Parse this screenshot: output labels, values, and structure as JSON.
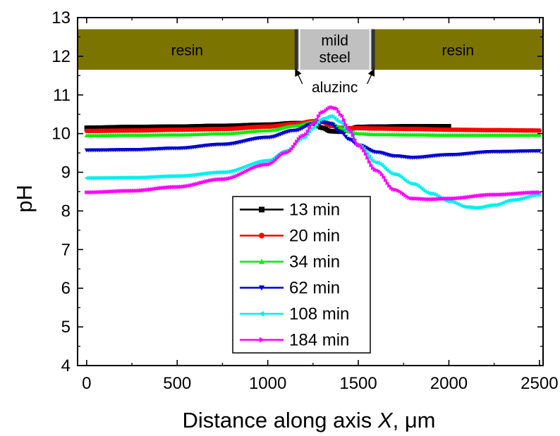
{
  "chart_data": {
    "type": "line",
    "title": "",
    "xlabel_main": "Distance along axis ",
    "xlabel_var": "X",
    "xlabel_unit": ", μm",
    "ylabel": "pH",
    "xlim": [
      -50,
      2520
    ],
    "ylim": [
      4,
      13
    ],
    "xticks": [
      0,
      500,
      1000,
      1500,
      2000,
      2500
    ],
    "yticks": [
      4,
      5,
      6,
      7,
      8,
      9,
      10,
      11,
      12,
      13
    ],
    "grid": false,
    "legend_position": "center-bottom",
    "sample_layout": {
      "y_range": [
        11.65,
        12.7
      ],
      "resin_left_label": "resin",
      "resin_right_label": "resin",
      "steel_label_line1": "mild",
      "steel_label_line2": "steel",
      "aluzinc_label": "aluzinc",
      "resin_color": "#7c7400",
      "steel_color": "#c0c0c0",
      "coating_color": "#333333",
      "steel_x": [
        1160,
        1580
      ]
    },
    "series": [
      {
        "name": "13 min",
        "color": "#000000",
        "marker": "square",
        "x": [
          0,
          250,
          500,
          750,
          1000,
          1150,
          1250,
          1300,
          1350,
          1400,
          1450,
          1500,
          1600,
          1800,
          2000
        ],
        "y": [
          10.15,
          10.17,
          10.18,
          10.2,
          10.23,
          10.27,
          10.27,
          10.15,
          10.06,
          10.05,
          10.12,
          10.17,
          10.18,
          10.19,
          10.19
        ]
      },
      {
        "name": "20 min",
        "color": "#ff0000",
        "marker": "circle",
        "x": [
          0,
          250,
          500,
          750,
          1000,
          1150,
          1250,
          1300,
          1350,
          1400,
          1450,
          1500,
          1600,
          1800,
          2000,
          2250,
          2500
        ],
        "y": [
          10.07,
          10.08,
          10.1,
          10.12,
          10.18,
          10.25,
          10.32,
          10.3,
          10.2,
          10.15,
          10.14,
          10.14,
          10.13,
          10.12,
          10.1,
          10.09,
          10.08
        ]
      },
      {
        "name": "34 min",
        "color": "#00ee00",
        "marker": "triangle-up",
        "x": [
          0,
          250,
          500,
          750,
          1000,
          1150,
          1250,
          1300,
          1350,
          1400,
          1450,
          1500,
          1600,
          1800,
          2000,
          2250,
          2500
        ],
        "y": [
          9.95,
          9.96,
          9.97,
          10.0,
          10.08,
          10.2,
          10.3,
          10.33,
          10.28,
          10.15,
          10.05,
          10.0,
          9.98,
          9.97,
          9.96,
          9.96,
          9.96
        ]
      },
      {
        "name": "62 min",
        "color": "#0000cc",
        "marker": "triangle-down",
        "x": [
          0,
          250,
          500,
          750,
          1000,
          1150,
          1250,
          1300,
          1350,
          1400,
          1450,
          1500,
          1600,
          1700,
          1800,
          2000,
          2250,
          2500
        ],
        "y": [
          9.57,
          9.58,
          9.62,
          9.72,
          9.9,
          10.08,
          10.25,
          10.3,
          10.25,
          10.05,
          9.85,
          9.7,
          9.52,
          9.42,
          9.38,
          9.45,
          9.53,
          9.55
        ]
      },
      {
        "name": "108 min",
        "color": "#00eeee",
        "marker": "triangle-left",
        "x": [
          0,
          250,
          500,
          750,
          1000,
          1100,
          1200,
          1250,
          1300,
          1350,
          1400,
          1450,
          1500,
          1600,
          1700,
          1800,
          1900,
          2000,
          2100,
          2150,
          2250,
          2350,
          2500
        ],
        "y": [
          8.85,
          8.86,
          8.9,
          9.0,
          9.3,
          9.55,
          9.9,
          10.15,
          10.38,
          10.45,
          10.3,
          10.05,
          9.7,
          9.25,
          8.95,
          8.7,
          8.45,
          8.25,
          8.1,
          8.08,
          8.15,
          8.28,
          8.42
        ]
      },
      {
        "name": "184 min",
        "color": "#ff00ff",
        "marker": "triangle-right",
        "x": [
          0,
          250,
          500,
          750,
          1000,
          1100,
          1200,
          1250,
          1300,
          1350,
          1380,
          1400,
          1450,
          1500,
          1600,
          1700,
          1800,
          1900,
          2000,
          2250,
          2500
        ],
        "y": [
          8.48,
          8.52,
          8.62,
          8.82,
          9.2,
          9.5,
          9.95,
          10.25,
          10.55,
          10.68,
          10.65,
          10.5,
          10.1,
          9.7,
          9.05,
          8.55,
          8.32,
          8.3,
          8.32,
          8.42,
          8.48
        ]
      }
    ]
  }
}
